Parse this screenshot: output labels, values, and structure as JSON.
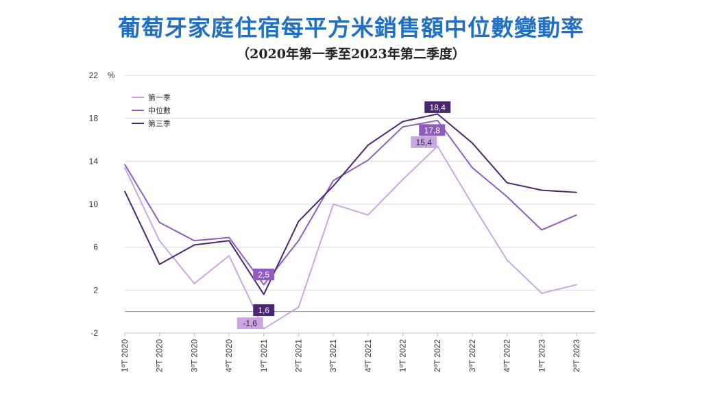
{
  "header": {
    "title": "葡萄牙家庭住宿每平方米銷售額中位數變動率",
    "subtitle": "（2020年第一季至2023年第二季度）",
    "title_color": "#1f6fc4"
  },
  "chart_data": {
    "type": "line",
    "title": "葡萄牙家庭住宿每平方米銷售額中位數變動率",
    "subtitle": "（2020年第一季至2023年第二季度）",
    "ylabel": "%",
    "xlabel": "",
    "ylim": [
      -2,
      22
    ],
    "yticks": [
      -2,
      2,
      6,
      10,
      14,
      18,
      22
    ],
    "zero_line": true,
    "grid": true,
    "legend_position": "top-left",
    "categories": [
      "1ºT 2020",
      "2ºT 2020",
      "3ºT 2020",
      "4ºT 2020",
      "1ºT 2021",
      "2ºT 2021",
      "3ºT 2021",
      "4ºT 2021",
      "1ºT 2022",
      "2ºT 2022",
      "3ºT 2022",
      "4ºT 2022",
      "1ºT 2023",
      "2ºT 2023"
    ],
    "series": [
      {
        "name": "第一季",
        "color": "#c9a6e0",
        "label_text_color": "#222222",
        "values": [
          13.4,
          6.6,
          2.6,
          5.2,
          -1.6,
          0.4,
          10.0,
          9.0,
          12.3,
          15.4,
          10.0,
          4.8,
          1.7,
          2.5
        ],
        "labels": [
          {
            "index": 4,
            "text": "-1,6"
          },
          {
            "index": 9,
            "text": "15,4"
          }
        ]
      },
      {
        "name": "中位數",
        "color": "#8e5cc0",
        "label_text_color": "#ffffff",
        "values": [
          13.7,
          8.3,
          6.6,
          6.9,
          2.5,
          6.6,
          12.2,
          14.1,
          17.2,
          17.8,
          13.4,
          10.7,
          7.6,
          9.0
        ],
        "labels": [
          {
            "index": 4,
            "text": "2,5"
          },
          {
            "index": 9,
            "text": "17,8"
          }
        ]
      },
      {
        "name": "第三季",
        "color": "#4a2670",
        "label_text_color": "#ffffff",
        "values": [
          11.2,
          4.4,
          6.2,
          6.6,
          1.6,
          8.4,
          11.7,
          15.5,
          17.7,
          18.4,
          15.7,
          12.0,
          11.3,
          11.1
        ],
        "labels": [
          {
            "index": 4,
            "text": "1,6"
          },
          {
            "index": 9,
            "text": "18,4"
          }
        ]
      }
    ]
  }
}
